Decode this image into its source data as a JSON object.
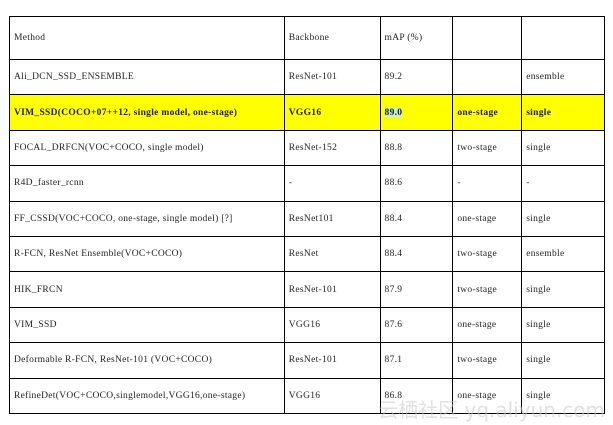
{
  "table": {
    "headers": [
      "Method",
      "Backbone",
      "mAP (%)",
      "",
      ""
    ],
    "rows": [
      {
        "method": "Ali_DCN_SSD_ENSEMBLE",
        "backbone": "ResNet-101",
        "map": "89.2",
        "stage": "",
        "model": "ensemble"
      },
      {
        "method": "VIM_SSD(COCO+07++12, single model, one-stage)",
        "backbone": "VGG16",
        "map": "89.0",
        "stage": "one-stage",
        "model": "single",
        "highlighted": true
      },
      {
        "method": "FOCAL_DRFCN(VOC+COCO, single model)",
        "backbone": "ResNet-152",
        "map": "88.8",
        "stage": "two-stage",
        "model": "single"
      },
      {
        "method": "R4D_faster_rcnn",
        "backbone": "-",
        "map": "88.6",
        "stage": "-",
        "model": "-"
      },
      {
        "method": "FF_CSSD(VOC+COCO, one-stage, single model) [?]",
        "backbone": "ResNet101",
        "map": "88.4",
        "stage": "one-stage",
        "model": "single"
      },
      {
        "method": "R-FCN, ResNet Ensemble(VOC+COCO)",
        "backbone": "ResNet",
        "map": "88.4",
        "stage": "two-stage",
        "model": "ensemble"
      },
      {
        "method": "HIK_FRCN",
        "backbone": "ResNet-101",
        "map": "87.9",
        "stage": "two-stage",
        "model": "single"
      },
      {
        "method": "VIM_SSD",
        "backbone": "VGG16",
        "map": "87.6",
        "stage": "one-stage",
        "model": "single"
      },
      {
        "method": "Deformable R-FCN, ResNet-101 (VOC+COCO)",
        "backbone": "ResNet-101",
        "map": "87.1",
        "stage": "two-stage",
        "model": "single"
      },
      {
        "method": "RefineDet(VOC+COCO,singlemodel,VGG16,one-stage)",
        "backbone": "VGG16",
        "map": "86.8",
        "stage": "one-stage",
        "model": "single"
      }
    ]
  },
  "colors": {
    "highlight": "#ffff00",
    "value_mark": "#c8f0c0"
  },
  "watermark": "云栖社区 yq.aliyun.com"
}
